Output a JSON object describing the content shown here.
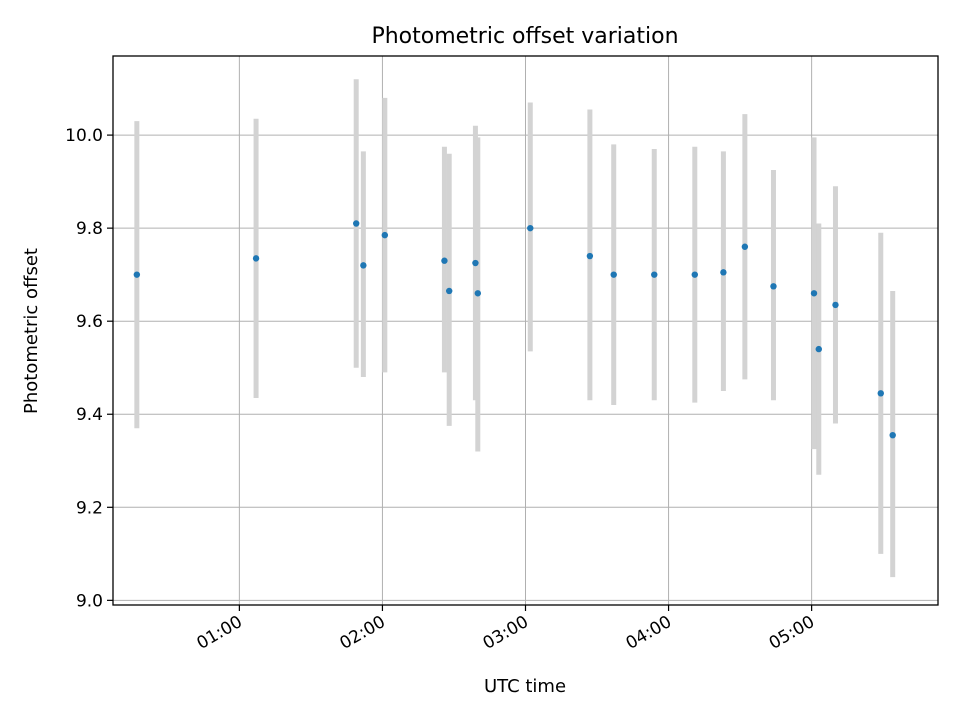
{
  "chart_data": {
    "type": "scatter",
    "title": "Photometric offset variation",
    "xlabel": "UTC time",
    "ylabel": "Photometric offset",
    "xlim": [
      "00:07",
      "05:53"
    ],
    "ylim": [
      8.99,
      10.17
    ],
    "x_ticks": [
      "01:00",
      "02:00",
      "03:00",
      "04:00",
      "05:00"
    ],
    "y_ticks": [
      "9.0",
      "9.2",
      "9.4",
      "9.6",
      "9.8",
      "10.0"
    ],
    "grid": true,
    "marker_color": "#1f77b4",
    "errorbar_color": "#d3d3d3",
    "points": [
      {
        "x": "00:17",
        "y": 9.7,
        "ylow": 9.37,
        "yhigh": 10.03
      },
      {
        "x": "01:07",
        "y": 9.735,
        "ylow": 9.435,
        "yhigh": 10.035
      },
      {
        "x": "01:49",
        "y": 9.81,
        "ylow": 9.5,
        "yhigh": 10.12
      },
      {
        "x": "01:52",
        "y": 9.72,
        "ylow": 9.48,
        "yhigh": 9.965
      },
      {
        "x": "02:01",
        "y": 9.785,
        "ylow": 9.49,
        "yhigh": 10.08
      },
      {
        "x": "02:26",
        "y": 9.73,
        "ylow": 9.49,
        "yhigh": 9.975
      },
      {
        "x": "02:28",
        "y": 9.665,
        "ylow": 9.375,
        "yhigh": 9.96
      },
      {
        "x": "02:39",
        "y": 9.725,
        "ylow": 9.43,
        "yhigh": 10.02
      },
      {
        "x": "02:40",
        "y": 9.66,
        "ylow": 9.32,
        "yhigh": 9.995
      },
      {
        "x": "03:02",
        "y": 9.8,
        "ylow": 9.535,
        "yhigh": 10.07
      },
      {
        "x": "03:27",
        "y": 9.74,
        "ylow": 9.43,
        "yhigh": 10.055
      },
      {
        "x": "03:37",
        "y": 9.7,
        "ylow": 9.42,
        "yhigh": 9.98
      },
      {
        "x": "03:54",
        "y": 9.7,
        "ylow": 9.43,
        "yhigh": 9.97
      },
      {
        "x": "04:11",
        "y": 9.7,
        "ylow": 9.425,
        "yhigh": 9.975
      },
      {
        "x": "04:23",
        "y": 9.705,
        "ylow": 9.45,
        "yhigh": 9.965
      },
      {
        "x": "04:32",
        "y": 9.76,
        "ylow": 9.475,
        "yhigh": 10.045
      },
      {
        "x": "04:44",
        "y": 9.675,
        "ylow": 9.43,
        "yhigh": 9.925
      },
      {
        "x": "05:01",
        "y": 9.66,
        "ylow": 9.325,
        "yhigh": 9.995
      },
      {
        "x": "05:03",
        "y": 9.54,
        "ylow": 9.27,
        "yhigh": 9.81
      },
      {
        "x": "05:10",
        "y": 9.635,
        "ylow": 9.38,
        "yhigh": 9.89
      },
      {
        "x": "05:29",
        "y": 9.445,
        "ylow": 9.1,
        "yhigh": 9.79
      },
      {
        "x": "05:34",
        "y": 9.355,
        "ylow": 9.05,
        "yhigh": 9.665
      }
    ]
  }
}
